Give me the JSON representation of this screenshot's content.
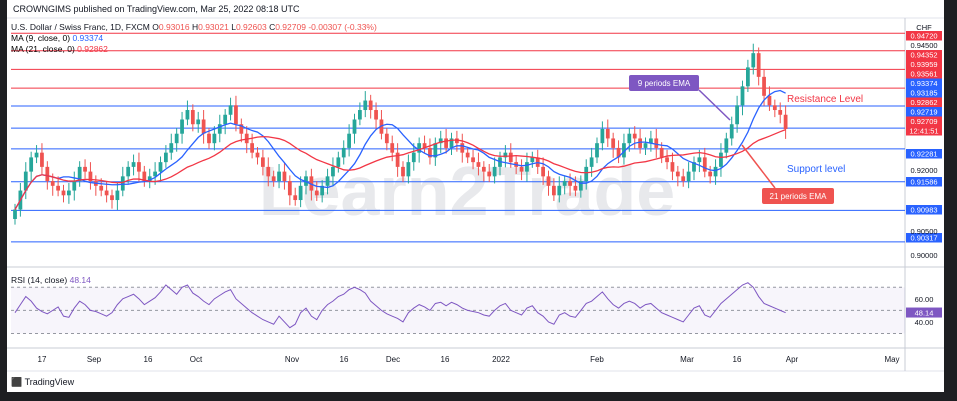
{
  "header": {
    "publisher": "CROWNGIMS published on TradingView.com, Mar 25, 2022 08:18 UTC"
  },
  "symbol": {
    "name": "U.S. Dollar / Swiss Franc, 1D, FXCM",
    "open_label": "O",
    "open": "0.93016",
    "high_label": "H",
    "high": "0.93021",
    "low_label": "L",
    "low": "0.92603",
    "close_label": "C",
    "close": "0.92709",
    "change": "-0.00307 (-0.33%)"
  },
  "indicators": {
    "ma9_label": "MA (9, close, 0)",
    "ma9_value": "0.93374",
    "ma9_color": "#2962ff",
    "ma21_label": "MA (21, close, 0)",
    "ma21_value": "0.92862",
    "ma21_color": "#f23645",
    "rsi_label": "RSI (14, close)",
    "rsi_value": "48.14"
  },
  "price_axis": {
    "currency": "CHF",
    "ticks": [
      "0.92000",
      "0.90500",
      "0.90000"
    ],
    "badges": [
      {
        "text": "0.94720",
        "color": "#f23645"
      },
      {
        "text": "0.94500",
        "color": "#ffffff"
      },
      {
        "text": "0.94352",
        "color": "#f23645"
      },
      {
        "text": "0.93959",
        "color": "#f23645"
      },
      {
        "text": "0.93561",
        "color": "#f23645"
      },
      {
        "text": "0.93374",
        "color": "#2962ff"
      },
      {
        "text": "0.93185",
        "color": "#2962ff"
      },
      {
        "text": "0.92862",
        "color": "#f23645"
      },
      {
        "text": "0.92719",
        "color": "#2962ff"
      },
      {
        "text": "0.92709",
        "color": "#f23645"
      },
      {
        "text": "12:41:51",
        "color": "#f23645"
      },
      {
        "text": "0.92281",
        "color": "#2962ff"
      },
      {
        "text": "0.91586",
        "color": "#2962ff"
      },
      {
        "text": "0.90983",
        "color": "#2962ff"
      },
      {
        "text": "0.90317",
        "color": "#2962ff"
      }
    ]
  },
  "rsi_axis": {
    "ticks": [
      "60.00",
      "40.00"
    ],
    "value_badge": "48.14",
    "badge_color": "#7e57c2"
  },
  "time_axis": {
    "labels": [
      "17",
      "Sep",
      "16",
      "Oct",
      "Nov",
      "16",
      "Dec",
      "16",
      "2022",
      "Feb",
      "Mar",
      "16",
      "Apr",
      "May"
    ]
  },
  "annotations": {
    "resistance": "Resistance Level",
    "support": "Support level",
    "ema9": "9 periods EMA",
    "ema21": "21 periods EMA"
  },
  "watermark": "Learn2Trade",
  "footer": {
    "brand": "TradingView"
  },
  "chart_data": {
    "type": "candlestick",
    "symbol": "USD/CHF",
    "timeframe": "1D",
    "y_range": [
      0.8985,
      0.95
    ],
    "horizontal_levels": [
      {
        "value": 0.9472,
        "color": "#f23645"
      },
      {
        "value": 0.94352,
        "color": "#f23645"
      },
      {
        "value": 0.93959,
        "color": "#f23645"
      },
      {
        "value": 0.93561,
        "color": "#f23645"
      },
      {
        "value": 0.93185,
        "color": "#2962ff"
      },
      {
        "value": 0.92719,
        "color": "#2962ff"
      },
      {
        "value": 0.92281,
        "color": "#2962ff"
      },
      {
        "value": 0.91586,
        "color": "#2962ff"
      },
      {
        "value": 0.90983,
        "color": "#2962ff"
      },
      {
        "value": 0.90317,
        "color": "#2962ff"
      }
    ],
    "closes": [
      0.91,
      0.914,
      0.918,
      0.921,
      0.922,
      0.919,
      0.916,
      0.915,
      0.914,
      0.913,
      0.914,
      0.916,
      0.919,
      0.918,
      0.916,
      0.915,
      0.914,
      0.913,
      0.912,
      0.914,
      0.917,
      0.919,
      0.92,
      0.918,
      0.916,
      0.917,
      0.918,
      0.92,
      0.922,
      0.924,
      0.926,
      0.929,
      0.931,
      0.928,
      0.929,
      0.926,
      0.924,
      0.926,
      0.928,
      0.93,
      0.932,
      0.928,
      0.926,
      0.924,
      0.922,
      0.921,
      0.919,
      0.917,
      0.916,
      0.918,
      0.916,
      0.913,
      0.912,
      0.915,
      0.917,
      0.914,
      0.913,
      0.915,
      0.917,
      0.919,
      0.921,
      0.923,
      0.926,
      0.929,
      0.931,
      0.933,
      0.931,
      0.929,
      0.926,
      0.924,
      0.922,
      0.919,
      0.917,
      0.92,
      0.922,
      0.924,
      0.923,
      0.921,
      0.924,
      0.925,
      0.923,
      0.925,
      0.924,
      0.922,
      0.921,
      0.92,
      0.919,
      0.918,
      0.917,
      0.919,
      0.921,
      0.922,
      0.92,
      0.919,
      0.918,
      0.92,
      0.921,
      0.919,
      0.917,
      0.915,
      0.913,
      0.915,
      0.916,
      0.915,
      0.914,
      0.916,
      0.919,
      0.921,
      0.924,
      0.927,
      0.925,
      0.923,
      0.921,
      0.924,
      0.926,
      0.925,
      0.923,
      0.924,
      0.925,
      0.923,
      0.921,
      0.92,
      0.918,
      0.917,
      0.916,
      0.918,
      0.92,
      0.921,
      0.918,
      0.917,
      0.919,
      0.922,
      0.925,
      0.928,
      0.932,
      0.936,
      0.94,
      0.943,
      0.938,
      0.934,
      0.932,
      0.931,
      0.93,
      0.927
    ],
    "rsi": [
      48,
      55,
      62,
      58,
      52,
      49,
      47,
      50,
      53,
      45,
      44,
      52,
      58,
      55,
      50,
      49,
      47,
      45,
      48,
      55,
      60,
      62,
      64,
      60,
      55,
      58,
      61,
      66,
      72,
      68,
      64,
      70,
      72,
      65,
      62,
      58,
      55,
      60,
      63,
      66,
      68,
      60,
      56,
      52,
      48,
      45,
      42,
      40,
      38,
      45,
      40,
      35,
      38,
      48,
      52,
      45,
      42,
      50,
      55,
      58,
      62,
      64,
      68,
      70,
      68,
      65,
      58,
      54,
      50,
      47,
      45,
      43,
      40,
      48,
      52,
      55,
      53,
      50,
      56,
      57,
      54,
      57,
      55,
      52,
      50,
      49,
      48,
      46,
      45,
      50,
      54,
      56,
      50,
      48,
      46,
      52,
      54,
      48,
      45,
      40,
      38,
      46,
      48,
      45,
      44,
      50,
      56,
      58,
      62,
      66,
      60,
      55,
      52,
      56,
      58,
      56,
      52,
      55,
      56,
      52,
      48,
      46,
      44,
      42,
      40,
      46,
      52,
      54,
      46,
      44,
      50,
      56,
      60,
      64,
      68,
      72,
      74,
      70,
      62,
      56,
      54,
      52,
      50,
      48
    ]
  }
}
